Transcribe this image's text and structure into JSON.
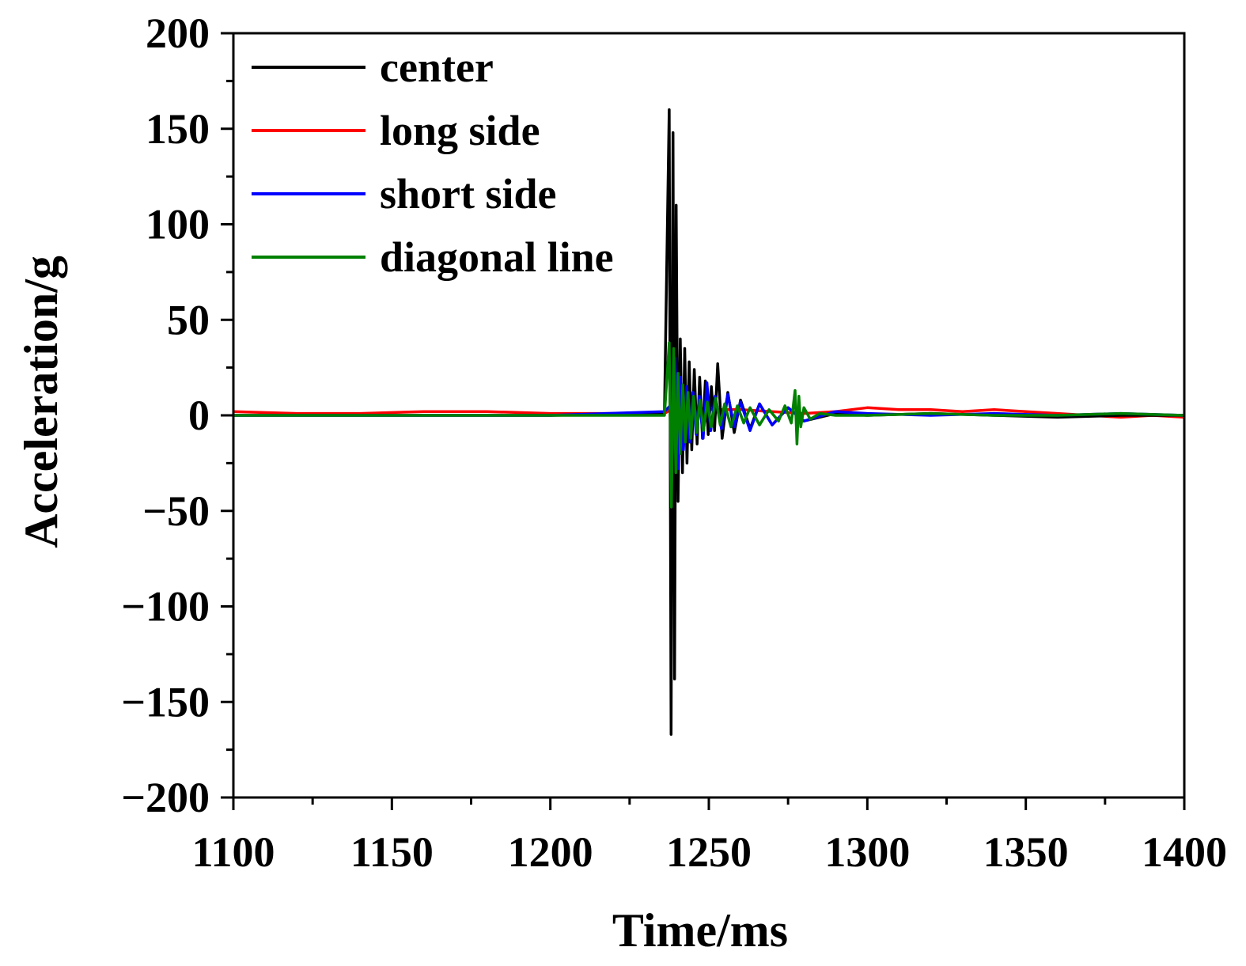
{
  "chart_data": {
    "type": "line",
    "title": "",
    "xlabel": "Time/ms",
    "ylabel": "Acceleration/g",
    "xlim": [
      1100,
      1400
    ],
    "ylim": [
      -200,
      200
    ],
    "x_ticks": [
      1100,
      1150,
      1200,
      1250,
      1300,
      1350,
      1400
    ],
    "x_tick_labels": [
      "1100",
      "1150",
      "1200",
      "1250",
      "1300",
      "1350",
      "1400"
    ],
    "y_ticks": [
      200,
      150,
      100,
      50,
      0,
      -50,
      -100,
      -150,
      -200
    ],
    "y_tick_labels": [
      "200",
      "150",
      "100",
      "50",
      "0",
      "−50",
      "−100",
      "−150",
      "−200"
    ],
    "grid": false,
    "legend_position": "top-left",
    "series": [
      {
        "name": "center",
        "color": "#000000",
        "x": [
          1100,
          1150,
          1200,
          1236,
          1237.5,
          1238.1,
          1238.7,
          1239.2,
          1239.7,
          1240.3,
          1241,
          1241.7,
          1242.4,
          1243.1,
          1243.8,
          1244.6,
          1245.4,
          1246.3,
          1247.1,
          1248,
          1248.9,
          1249.8,
          1250.8,
          1251.8,
          1252.8,
          1254.2,
          1256,
          1258,
          1260,
          1263,
          1266,
          1270,
          1275,
          1280,
          1290,
          1300,
          1320,
          1340,
          1360,
          1380,
          1400
        ],
        "y": [
          0,
          0,
          0,
          1,
          160,
          -167,
          148,
          -138,
          110,
          -45,
          40,
          -30,
          35,
          -25,
          28,
          -18,
          24,
          -15,
          20,
          -12,
          18,
          -10,
          15,
          -8,
          27,
          -12,
          12,
          -9,
          8,
          -7,
          6,
          -5,
          4,
          -3,
          1,
          0,
          1,
          0,
          -1,
          0,
          0
        ]
      },
      {
        "name": "long side",
        "color": "#ff0000",
        "x": [
          1100,
          1120,
          1140,
          1160,
          1180,
          1200,
          1220,
          1236,
          1238,
          1240,
          1245,
          1250,
          1260,
          1270,
          1280,
          1290,
          1300,
          1310,
          1320,
          1330,
          1340,
          1350,
          1360,
          1370,
          1380,
          1390,
          1400
        ],
        "y": [
          2,
          1,
          1,
          2,
          2,
          1,
          1,
          1,
          3,
          -5,
          4,
          3,
          3,
          2,
          1,
          2,
          4,
          3,
          3,
          2,
          3,
          2,
          1,
          0,
          -1,
          0,
          -1
        ]
      },
      {
        "name": "short side",
        "color": "#0000ff",
        "x": [
          1100,
          1150,
          1200,
          1236,
          1237.8,
          1238.5,
          1239.3,
          1240.2,
          1241.1,
          1242,
          1243,
          1244,
          1245,
          1246,
          1247,
          1248.2,
          1249.4,
          1250.6,
          1252,
          1254,
          1256,
          1258,
          1260,
          1263,
          1266,
          1270,
          1275,
          1280,
          1290,
          1300,
          1320,
          1340,
          1360,
          1380,
          1400
        ],
        "y": [
          0,
          0,
          0,
          2,
          5,
          -20,
          30,
          -28,
          20,
          -18,
          15,
          -14,
          12,
          -10,
          10,
          -12,
          17,
          -8,
          10,
          -7,
          11,
          -6,
          7,
          -8,
          6,
          -5,
          4,
          -3,
          2,
          1,
          0,
          1,
          0,
          1,
          0
        ]
      },
      {
        "name": "diagonal line",
        "color": "#008000",
        "x": [
          1100,
          1150,
          1200,
          1236,
          1237.5,
          1238.2,
          1238.9,
          1239.6,
          1240.3,
          1241,
          1241.8,
          1242.6,
          1243.4,
          1244.3,
          1245.2,
          1246.2,
          1247.2,
          1248.3,
          1249.5,
          1250.8,
          1252.2,
          1253.6,
          1255,
          1257,
          1259,
          1261,
          1263,
          1266,
          1269,
          1272,
          1274,
          1276,
          1277.2,
          1277.8,
          1278.4,
          1279,
          1280,
          1282,
          1285,
          1290,
          1300,
          1320,
          1340,
          1360,
          1380,
          1400
        ],
        "y": [
          0,
          0,
          0,
          0,
          38,
          -48,
          35,
          -30,
          22,
          -20,
          16,
          -14,
          12,
          -12,
          10,
          -9,
          8,
          -8,
          7,
          -6,
          9,
          -5,
          6,
          -6,
          5,
          -4,
          4,
          -5,
          3,
          -3,
          5,
          -4,
          13,
          -15,
          10,
          -6,
          4,
          -2,
          1,
          0,
          0,
          1,
          0,
          0,
          1,
          0
        ]
      }
    ]
  }
}
